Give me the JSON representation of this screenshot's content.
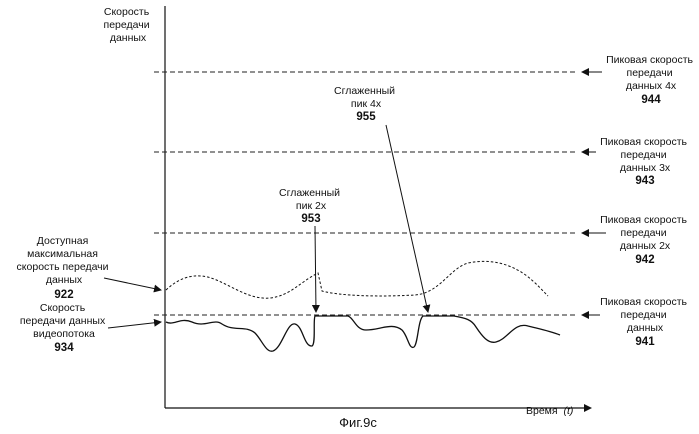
{
  "figure": {
    "caption": "Фиг.9с",
    "y_axis_label": [
      "Скорость",
      "передачи",
      "данных"
    ],
    "x_axis_label": "Время",
    "x_axis_symbol": "(t)"
  },
  "levels": [
    {
      "key": "p4",
      "label": [
        "Пиковая скорость",
        "передачи",
        "данных 4x"
      ],
      "ref": "944"
    },
    {
      "key": "p3",
      "label": [
        "Пиковая скорость",
        "передачи",
        "данных 3x"
      ],
      "ref": "943"
    },
    {
      "key": "p2",
      "label": [
        "Пиковая скорость",
        "передачи",
        "данных 2x"
      ],
      "ref": "942"
    },
    {
      "key": "p1",
      "label": [
        "Пиковая скорость",
        "передачи",
        "данных"
      ],
      "ref": "941"
    }
  ],
  "curves": {
    "available": {
      "label": [
        "Доступная",
        "максимальная",
        "скорость передачи",
        "данных"
      ],
      "ref": "922"
    },
    "video": {
      "label": [
        "Скорость",
        "передачи данных",
        "видеопотока"
      ],
      "ref": "934"
    }
  },
  "annotations": {
    "peak2": {
      "label": [
        "Сглаженный",
        "пик 2x"
      ],
      "ref": "953"
    },
    "peak4": {
      "label": [
        "Сглаженный",
        "пик 4x"
      ],
      "ref": "955"
    }
  }
}
